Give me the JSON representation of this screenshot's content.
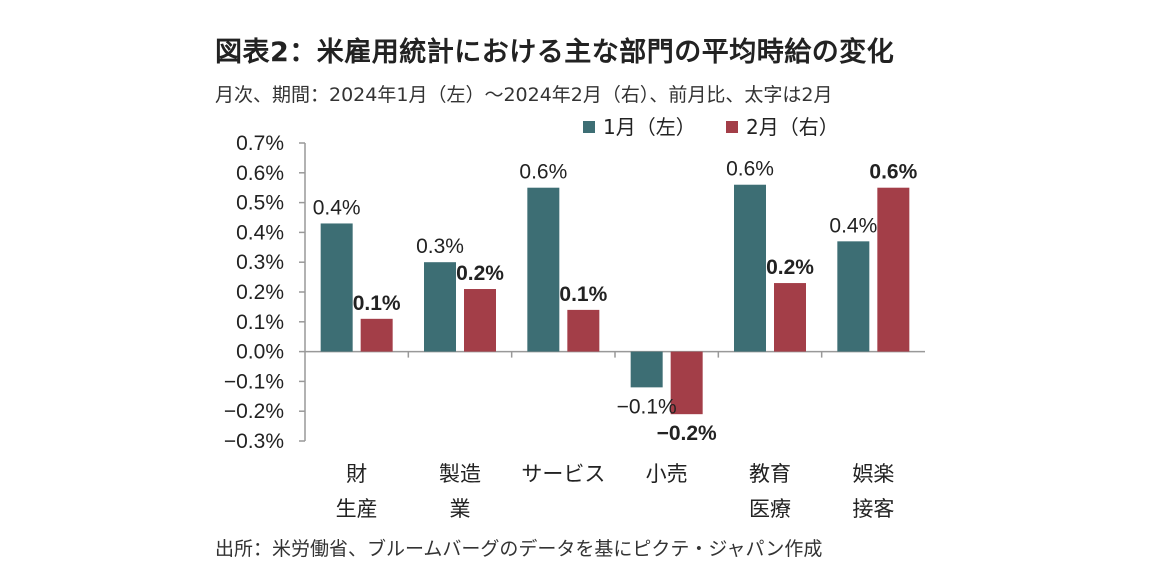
{
  "title": "図表2：米雇用統計における主な部門の平均時給の変化",
  "subtitle": "月次、期間：2024年1月（左）～2024年2月（右）、前月比、太字は2月",
  "source": "出所：米労働省、ブルームバーグのデータを基にピクテ・ジャパン作成",
  "chart_data": {
    "type": "bar",
    "categories": [
      [
        "財",
        "生産"
      ],
      [
        "製造",
        "業"
      ],
      [
        "サービス"
      ],
      [
        "小売"
      ],
      [
        "教育",
        "医療"
      ],
      [
        "娯楽",
        "接客"
      ]
    ],
    "series": [
      {
        "name": "1月（左）",
        "color": "#3d6e74",
        "values": [
          0.43,
          0.3,
          0.55,
          -0.12,
          0.56,
          0.37
        ],
        "labels": [
          "0.4%",
          "0.3%",
          "0.6%",
          "-0.1%",
          "0.6%",
          "0.4%"
        ],
        "bold": false
      },
      {
        "name": "2月（右）",
        "color": "#a33e48",
        "values": [
          0.11,
          0.21,
          0.14,
          -0.21,
          0.23,
          0.55
        ],
        "labels": [
          "0.1%",
          "0.2%",
          "0.1%",
          "-0.2%",
          "0.2%",
          "0.6%"
        ],
        "bold": true
      }
    ],
    "y_ticks": [
      "0.7%",
      "0.6%",
      "0.5%",
      "0.4%",
      "0.3%",
      "0.2%",
      "0.1%",
      "0.0%",
      "-0.1%",
      "-0.2%",
      "-0.3%"
    ],
    "ylim": [
      -0.3,
      0.7
    ],
    "legend_position": "top",
    "grid": false
  }
}
